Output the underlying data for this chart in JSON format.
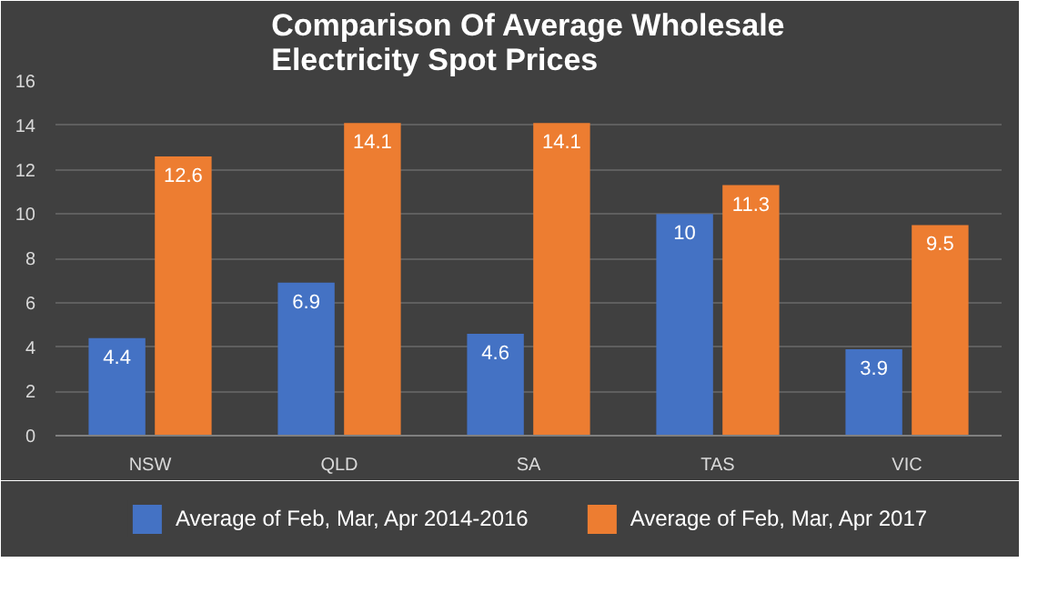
{
  "chart_data": {
    "type": "bar",
    "title": "Comparison Of Average Wholesale Electricity Spot Prices",
    "categories": [
      "NSW",
      "QLD",
      "SA",
      "TAS",
      "VIC"
    ],
    "series": [
      {
        "name": "Average of Feb, Mar, Apr 2014-2016",
        "color": "#4472c4",
        "values": [
          4.4,
          6.9,
          4.6,
          10,
          3.9
        ]
      },
      {
        "name": "Average of Feb, Mar, Apr 2017",
        "color": "#ed7d31",
        "values": [
          12.6,
          14.1,
          14.1,
          11.3,
          9.5
        ]
      }
    ],
    "ylim": [
      0,
      16
    ],
    "yticks": [
      0,
      2,
      4,
      6,
      8,
      10,
      12,
      14,
      16
    ],
    "grid": "y",
    "legend": "bottom",
    "data_labels": true
  }
}
